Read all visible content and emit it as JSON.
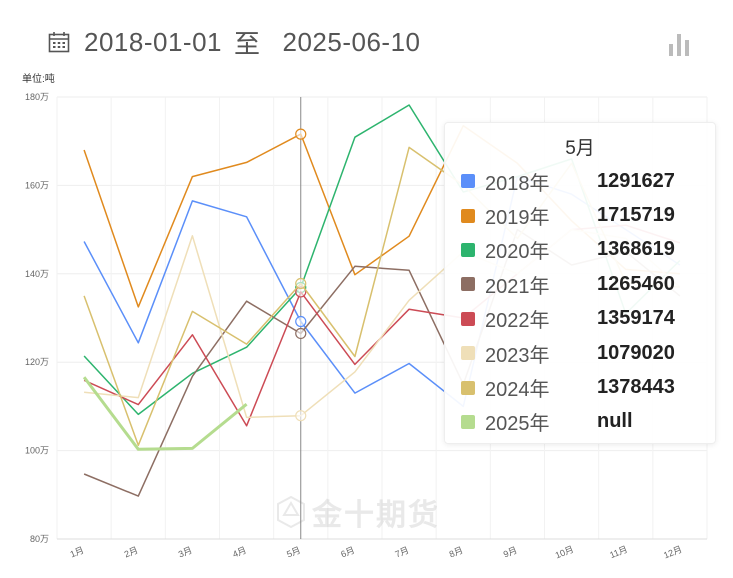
{
  "header": {
    "date_from": "2018-01-01",
    "sep": "至",
    "date_to": "2025-06-10"
  },
  "icons": {
    "calendar": "calendar-icon",
    "chart_toggle": "bar-chart-icon"
  },
  "unit_label": "单位:吨",
  "watermark": "金十期货",
  "chart_data": {
    "type": "line",
    "categories": [
      "1月",
      "2月",
      "3月",
      "4月",
      "5月",
      "6月",
      "7月",
      "8月",
      "9月",
      "10月",
      "11月",
      "12月"
    ],
    "ylim": [
      80,
      180
    ],
    "yticks": [
      80,
      100,
      120,
      140,
      160,
      180
    ],
    "ytick_labels": [
      "80万",
      "100万",
      "120万",
      "140万",
      "160万",
      "180万"
    ],
    "unit": "万",
    "grid": true,
    "hover_category_index": 4,
    "series": [
      {
        "name": "2018年",
        "color": "#5b8ff9",
        "values": [
          147.3,
          124.4,
          156.5,
          152.9,
          129.2,
          113.0,
          119.7,
          110.0,
          162.0,
          158.0,
          150.0,
          142.0
        ]
      },
      {
        "name": "2019年",
        "color": "#e08a1e",
        "values": [
          168.0,
          132.5,
          162.0,
          165.2,
          171.6,
          139.8,
          148.5,
          173.5,
          165.0,
          152.0,
          141.0,
          140.0
        ]
      },
      {
        "name": "2020年",
        "color": "#2db46e",
        "values": [
          121.4,
          108.2,
          117.5,
          123.4,
          136.9,
          170.9,
          178.2,
          158.5,
          162.0,
          166.0,
          131.0,
          143.0
        ]
      },
      {
        "name": "2021年",
        "color": "#8d6e63",
        "values": [
          94.7,
          89.7,
          116.8,
          133.8,
          126.5,
          141.7,
          140.8,
          115.0,
          150.0,
          142.0,
          145.0,
          135.0
        ]
      },
      {
        "name": "2022年",
        "color": "#cc4b55",
        "values": [
          115.9,
          110.4,
          126.2,
          105.6,
          135.9,
          119.5,
          132.0,
          130.0,
          140.0,
          150.0,
          151.0,
          147.0
        ]
      },
      {
        "name": "2023年",
        "color": "#efdfb8",
        "values": [
          113.2,
          112.0,
          148.6,
          107.5,
          107.9,
          117.8,
          134.0,
          145.0,
          140.0,
          150.0,
          148.0,
          137.0
        ]
      },
      {
        "name": "2024年",
        "color": "#d8c06e",
        "values": [
          135.0,
          101.2,
          131.5,
          124.1,
          137.8,
          121.3,
          168.6,
          160.0,
          148.0,
          165.0,
          138.0,
          137.0
        ]
      },
      {
        "name": "2025年",
        "color": "#b5dc8f",
        "values": [
          116.6,
          100.3,
          100.5,
          110.5,
          null,
          null,
          null,
          null,
          null,
          null,
          null,
          null
        ]
      }
    ]
  },
  "tooltip": {
    "title": "5月",
    "rows": [
      {
        "name": "2018年",
        "value": "1291627",
        "color": "#5b8ff9"
      },
      {
        "name": "2019年",
        "value": "1715719",
        "color": "#e08a1e"
      },
      {
        "name": "2020年",
        "value": "1368619",
        "color": "#2db46e"
      },
      {
        "name": "2021年",
        "value": "1265460",
        "color": "#8d6e63"
      },
      {
        "name": "2022年",
        "value": "1359174",
        "color": "#cc4b55"
      },
      {
        "name": "2023年",
        "value": "1079020",
        "color": "#efdfb8"
      },
      {
        "name": "2024年",
        "value": "1378443",
        "color": "#d8c06e"
      },
      {
        "name": "2025年",
        "value": "null",
        "color": "#b5dc8f"
      }
    ]
  }
}
